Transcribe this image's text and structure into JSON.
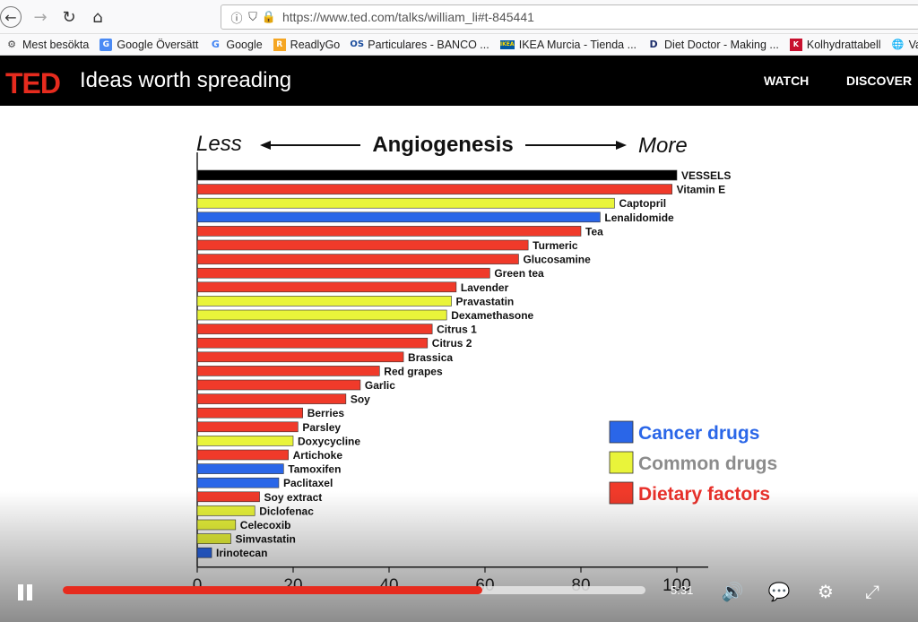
{
  "browser": {
    "url": "https://www.ted.com/talks/william_li#t-845441",
    "bookmarks": [
      {
        "label": "Mest besökta",
        "icon": "gear-icon"
      },
      {
        "label": "Google Översätt",
        "icon": "translate-icon"
      },
      {
        "label": "Google",
        "icon": "google-icon"
      },
      {
        "label": "ReadlyGo",
        "icon": "readly-icon"
      },
      {
        "label": "Particulares - BANCO ...",
        "icon": "bank-icon"
      },
      {
        "label": "IKEA Murcia - Tienda ...",
        "icon": "ikea-icon"
      },
      {
        "label": "Diet Doctor - Making ...",
        "icon": "diet-doctor-icon"
      },
      {
        "label": "Kolhydrattabell",
        "icon": "kolhydrat-icon"
      },
      {
        "label": "Va",
        "icon": "globe-icon"
      }
    ]
  },
  "ted": {
    "logo": "TED",
    "tagline": "Ideas worth spreading",
    "nav": {
      "watch": "WATCH",
      "discover": "DISCOVER"
    },
    "brand_color": "#e62b1e"
  },
  "player": {
    "time": "5:31",
    "progress": 0.72
  },
  "chart_data": {
    "type": "bar",
    "orientation": "horizontal",
    "title": "Angiogenesis",
    "left_label": "Less",
    "right_label": "More",
    "xlim": [
      0,
      100
    ],
    "xticks": [
      "0",
      "20",
      "40",
      "60",
      "80",
      "100"
    ],
    "colors": {
      "vessels": "#000000",
      "cancer": "#2a66e8",
      "common": "#e9f43a",
      "dietary": "#f03a2a"
    },
    "legend": [
      {
        "name": "Cancer drugs",
        "key": "cancer",
        "text_color": "#2a66e8"
      },
      {
        "name": "Common drugs",
        "key": "common",
        "text_color": "#8c8c8c"
      },
      {
        "name": "Dietary factors",
        "key": "dietary",
        "text_color": "#e8302a"
      }
    ],
    "legend_position": "bottom-right",
    "bars": [
      {
        "label": "VESSELS",
        "value": 100,
        "group": "vessels"
      },
      {
        "label": "Vitamin E",
        "value": 99,
        "group": "dietary"
      },
      {
        "label": "Captopril",
        "value": 87,
        "group": "common"
      },
      {
        "label": "Lenalidomide",
        "value": 84,
        "group": "cancer"
      },
      {
        "label": "Tea",
        "value": 80,
        "group": "dietary"
      },
      {
        "label": "Turmeric",
        "value": 69,
        "group": "dietary"
      },
      {
        "label": "Glucosamine",
        "value": 67,
        "group": "dietary"
      },
      {
        "label": "Green tea",
        "value": 61,
        "group": "dietary"
      },
      {
        "label": "Lavender",
        "value": 54,
        "group": "dietary"
      },
      {
        "label": "Pravastatin",
        "value": 53,
        "group": "common"
      },
      {
        "label": "Dexamethasone",
        "value": 52,
        "group": "common"
      },
      {
        "label": "Citrus 1",
        "value": 49,
        "group": "dietary"
      },
      {
        "label": "Citrus 2",
        "value": 48,
        "group": "dietary"
      },
      {
        "label": "Brassica",
        "value": 43,
        "group": "dietary"
      },
      {
        "label": "Red grapes",
        "value": 38,
        "group": "dietary"
      },
      {
        "label": "Garlic",
        "value": 34,
        "group": "dietary"
      },
      {
        "label": "Soy",
        "value": 31,
        "group": "dietary"
      },
      {
        "label": "Berries",
        "value": 22,
        "group": "dietary"
      },
      {
        "label": "Parsley",
        "value": 21,
        "group": "dietary"
      },
      {
        "label": "Doxycycline",
        "value": 20,
        "group": "common"
      },
      {
        "label": "Artichoke",
        "value": 19,
        "group": "dietary"
      },
      {
        "label": "Tamoxifen",
        "value": 18,
        "group": "cancer"
      },
      {
        "label": "Paclitaxel",
        "value": 17,
        "group": "cancer"
      },
      {
        "label": "Soy extract",
        "value": 13,
        "group": "dietary"
      },
      {
        "label": "Diclofenac",
        "value": 12,
        "group": "common"
      },
      {
        "label": "Celecoxib",
        "value": 8,
        "group": "common"
      },
      {
        "label": "Simvastatin",
        "value": 7,
        "group": "common"
      },
      {
        "label": "Irinotecan",
        "value": 3,
        "group": "cancer"
      }
    ]
  }
}
